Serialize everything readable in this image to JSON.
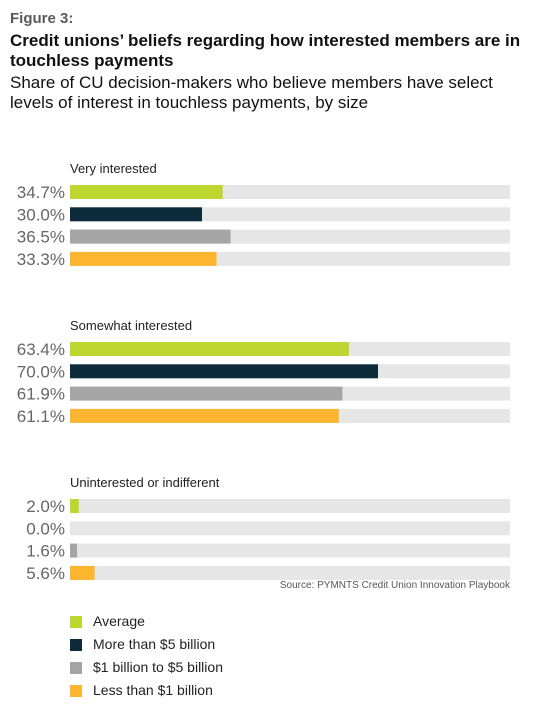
{
  "figure_label": "Figure 3:",
  "title": "Credit unions’ beliefs regarding how interested members are in touchless payments",
  "subtitle": "Share of CU decision-makers who believe members have select levels of interest in touchless payments, by size",
  "source": "Source: PYMNTS Credit Union Innovation Playbook",
  "colors": {
    "average": "#bed630",
    "more_than_5b": "#0c2b3b",
    "1b_to_5b": "#a5a5a5",
    "less_than_1b": "#fbb52f",
    "track": "#e6e6e6"
  },
  "chart_data": {
    "type": "bar",
    "orientation": "horizontal",
    "xlim": [
      0,
      100
    ],
    "value_format": "percent",
    "groups": [
      {
        "label": "Very interested",
        "values": [
          34.7,
          30.0,
          36.5,
          33.3
        ]
      },
      {
        "label": "Somewhat interested",
        "values": [
          63.4,
          70.0,
          61.9,
          61.1
        ]
      },
      {
        "label": "Uninterested or indifferent",
        "values": [
          2.0,
          0.0,
          1.6,
          5.6
        ]
      }
    ],
    "series": [
      {
        "name": "Average",
        "color": "#bed630"
      },
      {
        "name": "More than $5 billion",
        "color": "#0c2b3b"
      },
      {
        "name": "$1 billion to $5 billion",
        "color": "#a5a5a5"
      },
      {
        "name": "Less than $1 billion",
        "color": "#fbb52f"
      }
    ],
    "legend_position": "bottom-left"
  }
}
